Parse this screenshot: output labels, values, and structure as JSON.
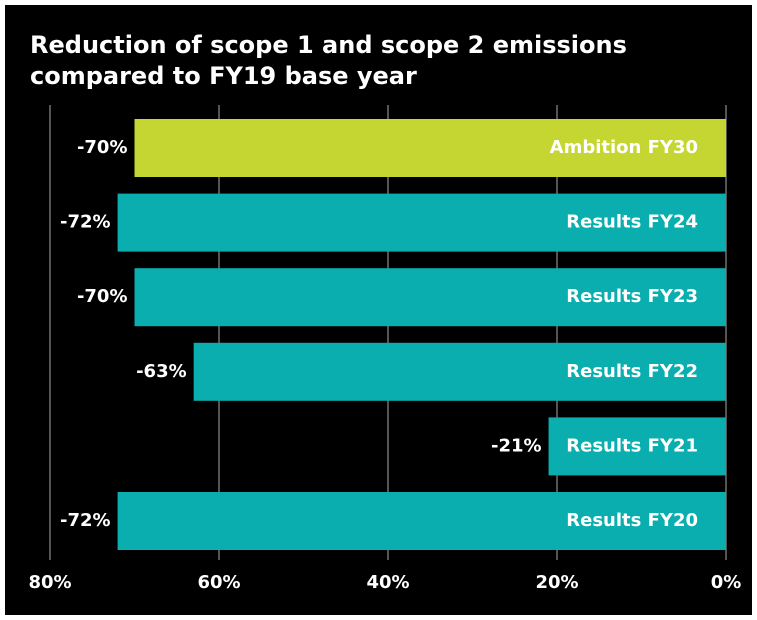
{
  "chart_data": {
    "type": "bar",
    "orientation": "horizontal",
    "title": [
      "Reduction of scope 1 and scope 2 emissions",
      "compared to FY19 base year"
    ],
    "categories": [
      "Ambition FY30",
      "Results FY24",
      "Results FY23",
      "Results FY22",
      "Results FY21",
      "Results FY20"
    ],
    "values": [
      -70,
      -72,
      -70,
      -63,
      -21,
      -72
    ],
    "value_labels": [
      "-70%",
      "-72%",
      "-70%",
      "-63%",
      "-21%",
      "-72%"
    ],
    "colors": [
      "#c5d531",
      "#0aaeae",
      "#0aaeae",
      "#0aaeae",
      "#0aaeae",
      "#0aaeae"
    ],
    "xlim": [
      -80,
      0
    ],
    "xticks": [
      {
        "value": -80,
        "label": "80%"
      },
      {
        "value": -60,
        "label": "60%"
      },
      {
        "value": -40,
        "label": "40%"
      },
      {
        "value": -20,
        "label": "20%"
      },
      {
        "value": 0,
        "label": "0%"
      }
    ],
    "grid": true
  }
}
